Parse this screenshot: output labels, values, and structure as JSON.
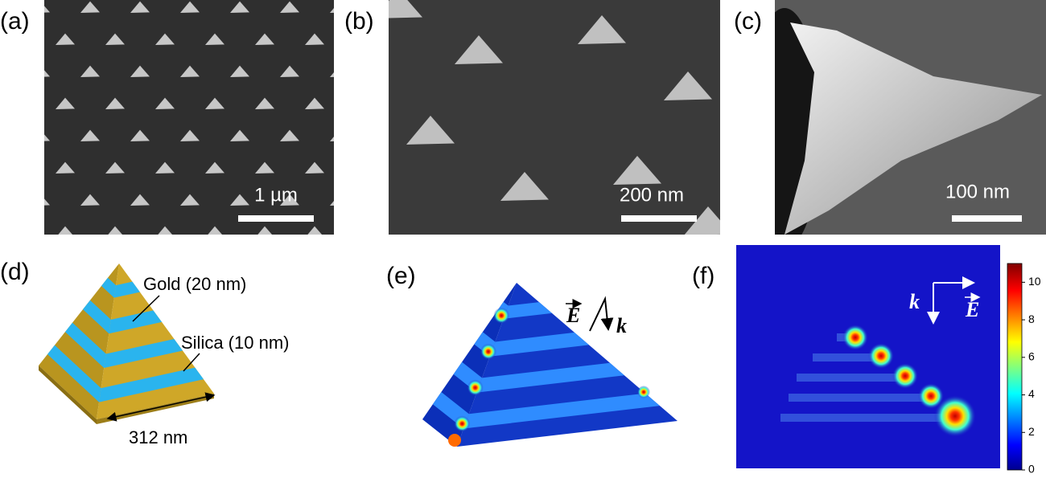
{
  "panels": [
    {
      "label": "(a)",
      "scale_bar": "1 µm"
    },
    {
      "label": "(b)",
      "scale_bar": "200 nm"
    },
    {
      "label": "(c)",
      "scale_bar": "100 nm"
    },
    {
      "label": "(d)",
      "annotations": [
        "Gold (20 nm)",
        "Silica (10 nm)",
        "312 nm"
      ]
    },
    {
      "label": "(e)",
      "field": "E",
      "wavevector": "k"
    },
    {
      "label": "(f)",
      "field": "E",
      "wavevector": "k",
      "colorbar": {
        "range": [
          0,
          11
        ],
        "ticks": [
          0,
          2,
          4,
          6,
          8,
          10
        ]
      }
    }
  ]
}
